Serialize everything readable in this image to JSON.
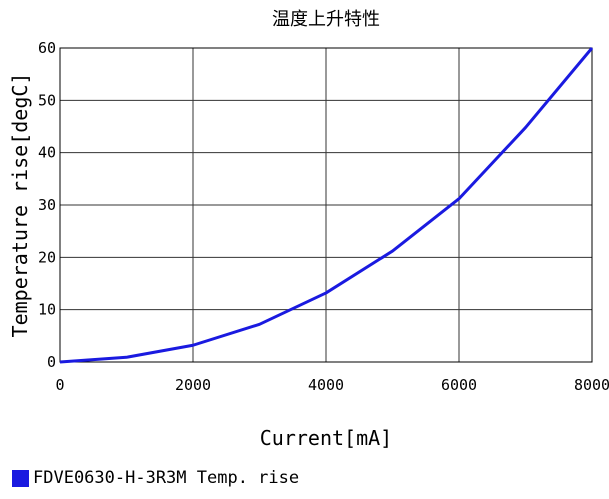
{
  "chart_data": {
    "type": "line",
    "title": "温度上升特性",
    "xlabel": "Current[mA]",
    "ylabel": "Temperature rise[degC]",
    "xlim": [
      0,
      8000
    ],
    "ylim": [
      0,
      60
    ],
    "xticks": [
      0,
      2000,
      4000,
      6000,
      8000
    ],
    "yticks": [
      0,
      10,
      20,
      30,
      40,
      50,
      60
    ],
    "grid": true,
    "legend_position": "bottom-left",
    "series": [
      {
        "name": "FDVE0630-H-3R3M Temp. rise",
        "color": "#1a1ae0",
        "x": [
          0,
          1000,
          2000,
          3000,
          4000,
          5000,
          6000,
          7000,
          8000
        ],
        "y": [
          0,
          0.9,
          3.2,
          7.2,
          13.2,
          21.2,
          31.2,
          44.8,
          60
        ]
      }
    ]
  }
}
